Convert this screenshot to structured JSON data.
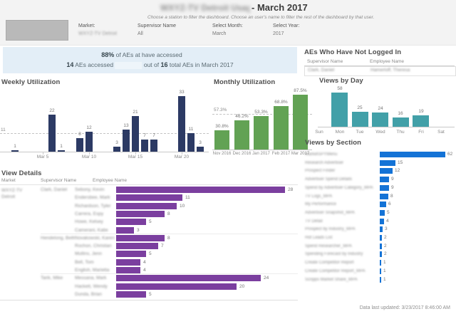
{
  "header": {
    "title_prefix_redacted": "WXYZ-TV Detroit Usage",
    "title": "- March 2017",
    "subtitle": "Choose a station to filter the dashboard. Choose an user's name to filter the rest of the dashboard by that user.",
    "filters": {
      "market_label": "Market:",
      "market_value": "WXYZ-TV Detroit",
      "supervisor_label": "Supervisor Name",
      "supervisor_value": "All",
      "month_label": "Select Month:",
      "month_value": "March",
      "year_label": "Select Year:",
      "year_value": "2017"
    }
  },
  "summary": {
    "pct": "88%",
    "line1_mid": " of AEs at ",
    "line1_end": " have accessed",
    "count": "14",
    "line2_a": " AEs accessed ",
    "line2_b": " out of ",
    "total": "16",
    "line2_c": " total AEs in March 2017"
  },
  "not_logged_in": {
    "title": "AEs Who Have Not Logged In",
    "col1": "Supervisor Name",
    "col2": "Employee Name",
    "row": {
      "supervisor": "Clark, Daniel",
      "employee": "Hamerloff, Theresa"
    }
  },
  "footer": "Data last updated: 3/23/2017 8:46:00 AM",
  "chart_data": [
    {
      "id": "weekly",
      "type": "bar",
      "title": "Weekly Utilization",
      "color": "#2c3a64",
      "reference_line": 11,
      "reference_label": "11",
      "x_ticks": [
        "Mar 5",
        "Mar 10",
        "Mar 15",
        "Mar 20"
      ],
      "bars": [
        {
          "date": "Mar 2",
          "value": 1
        },
        {
          "date": "Mar 6",
          "value": 22
        },
        {
          "date": "Mar 7",
          "value": 1
        },
        {
          "date": "Mar 9",
          "value": 8
        },
        {
          "date": "Mar 10",
          "value": 12
        },
        {
          "date": "Mar 13",
          "value": 3
        },
        {
          "date": "Mar 14",
          "value": 13
        },
        {
          "date": "Mar 15",
          "value": 21
        },
        {
          "date": "Mar 16",
          "value": 7
        },
        {
          "date": "Mar 17",
          "value": 7
        },
        {
          "date": "Mar 20",
          "value": 33
        },
        {
          "date": "Mar 21",
          "value": 11
        },
        {
          "date": "Mar 22",
          "value": 3
        }
      ]
    },
    {
      "id": "monthly",
      "type": "bar",
      "title": "Monthly Utilization",
      "color": "#62a254",
      "reference_line": 57.3,
      "reference_label": "57.3%",
      "categories": [
        "Nov 2016",
        "Dec 2016",
        "Jan 2017",
        "Feb 2017",
        "Mar 2017"
      ],
      "values": [
        30.8,
        46.2,
        53.3,
        68.8,
        87.5
      ],
      "labels": [
        "30.8%",
        "46.2%",
        "53.3%",
        "68.8%",
        "87.5%"
      ]
    },
    {
      "id": "views_by_day",
      "type": "bar",
      "title": "Views by Day",
      "color": "#42a0a8",
      "categories": [
        "Sun",
        "Mon",
        "Tue",
        "Wed",
        "Thu",
        "Fri",
        "Sat"
      ],
      "values": [
        0,
        58,
        25,
        24,
        16,
        19,
        0
      ]
    },
    {
      "id": "view_details",
      "type": "bar",
      "title": "View Details",
      "color": "#7b3f9f",
      "names_redacted": true,
      "columns": [
        "Market",
        "Supervisor Name",
        "Employee Name"
      ],
      "market": "WXYZ-TV Detroit",
      "groups": [
        {
          "supervisor": "Clark, Daniel",
          "rows": [
            [
              "Sebony, Kevin",
              28
            ],
            [
              "Endersbee, Mark",
              11
            ],
            [
              "Richardson, Tyler",
              10
            ],
            [
              "Carrera, Espy",
              8
            ],
            [
              "Howe, Kelsey",
              5
            ],
            [
              "Camerani, Katie",
              3
            ]
          ]
        },
        {
          "supervisor": "Hendelong, Beth",
          "rows": [
            [
              "Novakowski, Karen",
              8
            ],
            [
              "Rochon, Christian",
              7
            ],
            [
              "Mullins, Jenn",
              5
            ],
            [
              "Bell, Tom",
              4
            ],
            [
              "English, Marietta",
              4
            ]
          ]
        },
        {
          "supervisor": "Tarik, Mike",
          "rows": [
            [
              "Messana, Mark",
              24
            ],
            [
              "Hackett, Wendy",
              20
            ],
            [
              "Dunda, Brian",
              5
            ]
          ]
        }
      ]
    },
    {
      "id": "views_by_section",
      "type": "bar",
      "title": "Views by Section",
      "color": "#1473d6",
      "labels_redacted": true,
      "rows": [
        [
          "MarketSPYMenu",
          62
        ],
        [
          "Research Advertiser",
          15
        ],
        [
          "Prospect Finder",
          12
        ],
        [
          "Advertiser Spend Details",
          9
        ],
        [
          "Spend by Advertiser Category_MPA",
          9
        ],
        [
          "TV Logs_MPA",
          8
        ],
        [
          "My Performance",
          6
        ],
        [
          "Advertiser Snapshot_MPA",
          5
        ],
        [
          "TV Detail",
          4
        ],
        [
          "Prospect by Industry_MPA",
          3
        ],
        [
          "Hot Leads List",
          2
        ],
        [
          "Spend Researcher_MPA",
          2
        ],
        [
          "Spending Forecast by Industry",
          2
        ],
        [
          "Create Competitor Report",
          1
        ],
        [
          "Create Competitor Report_MPA",
          1
        ],
        [
          "Scripps Market Share_MPA",
          1
        ]
      ]
    }
  ]
}
